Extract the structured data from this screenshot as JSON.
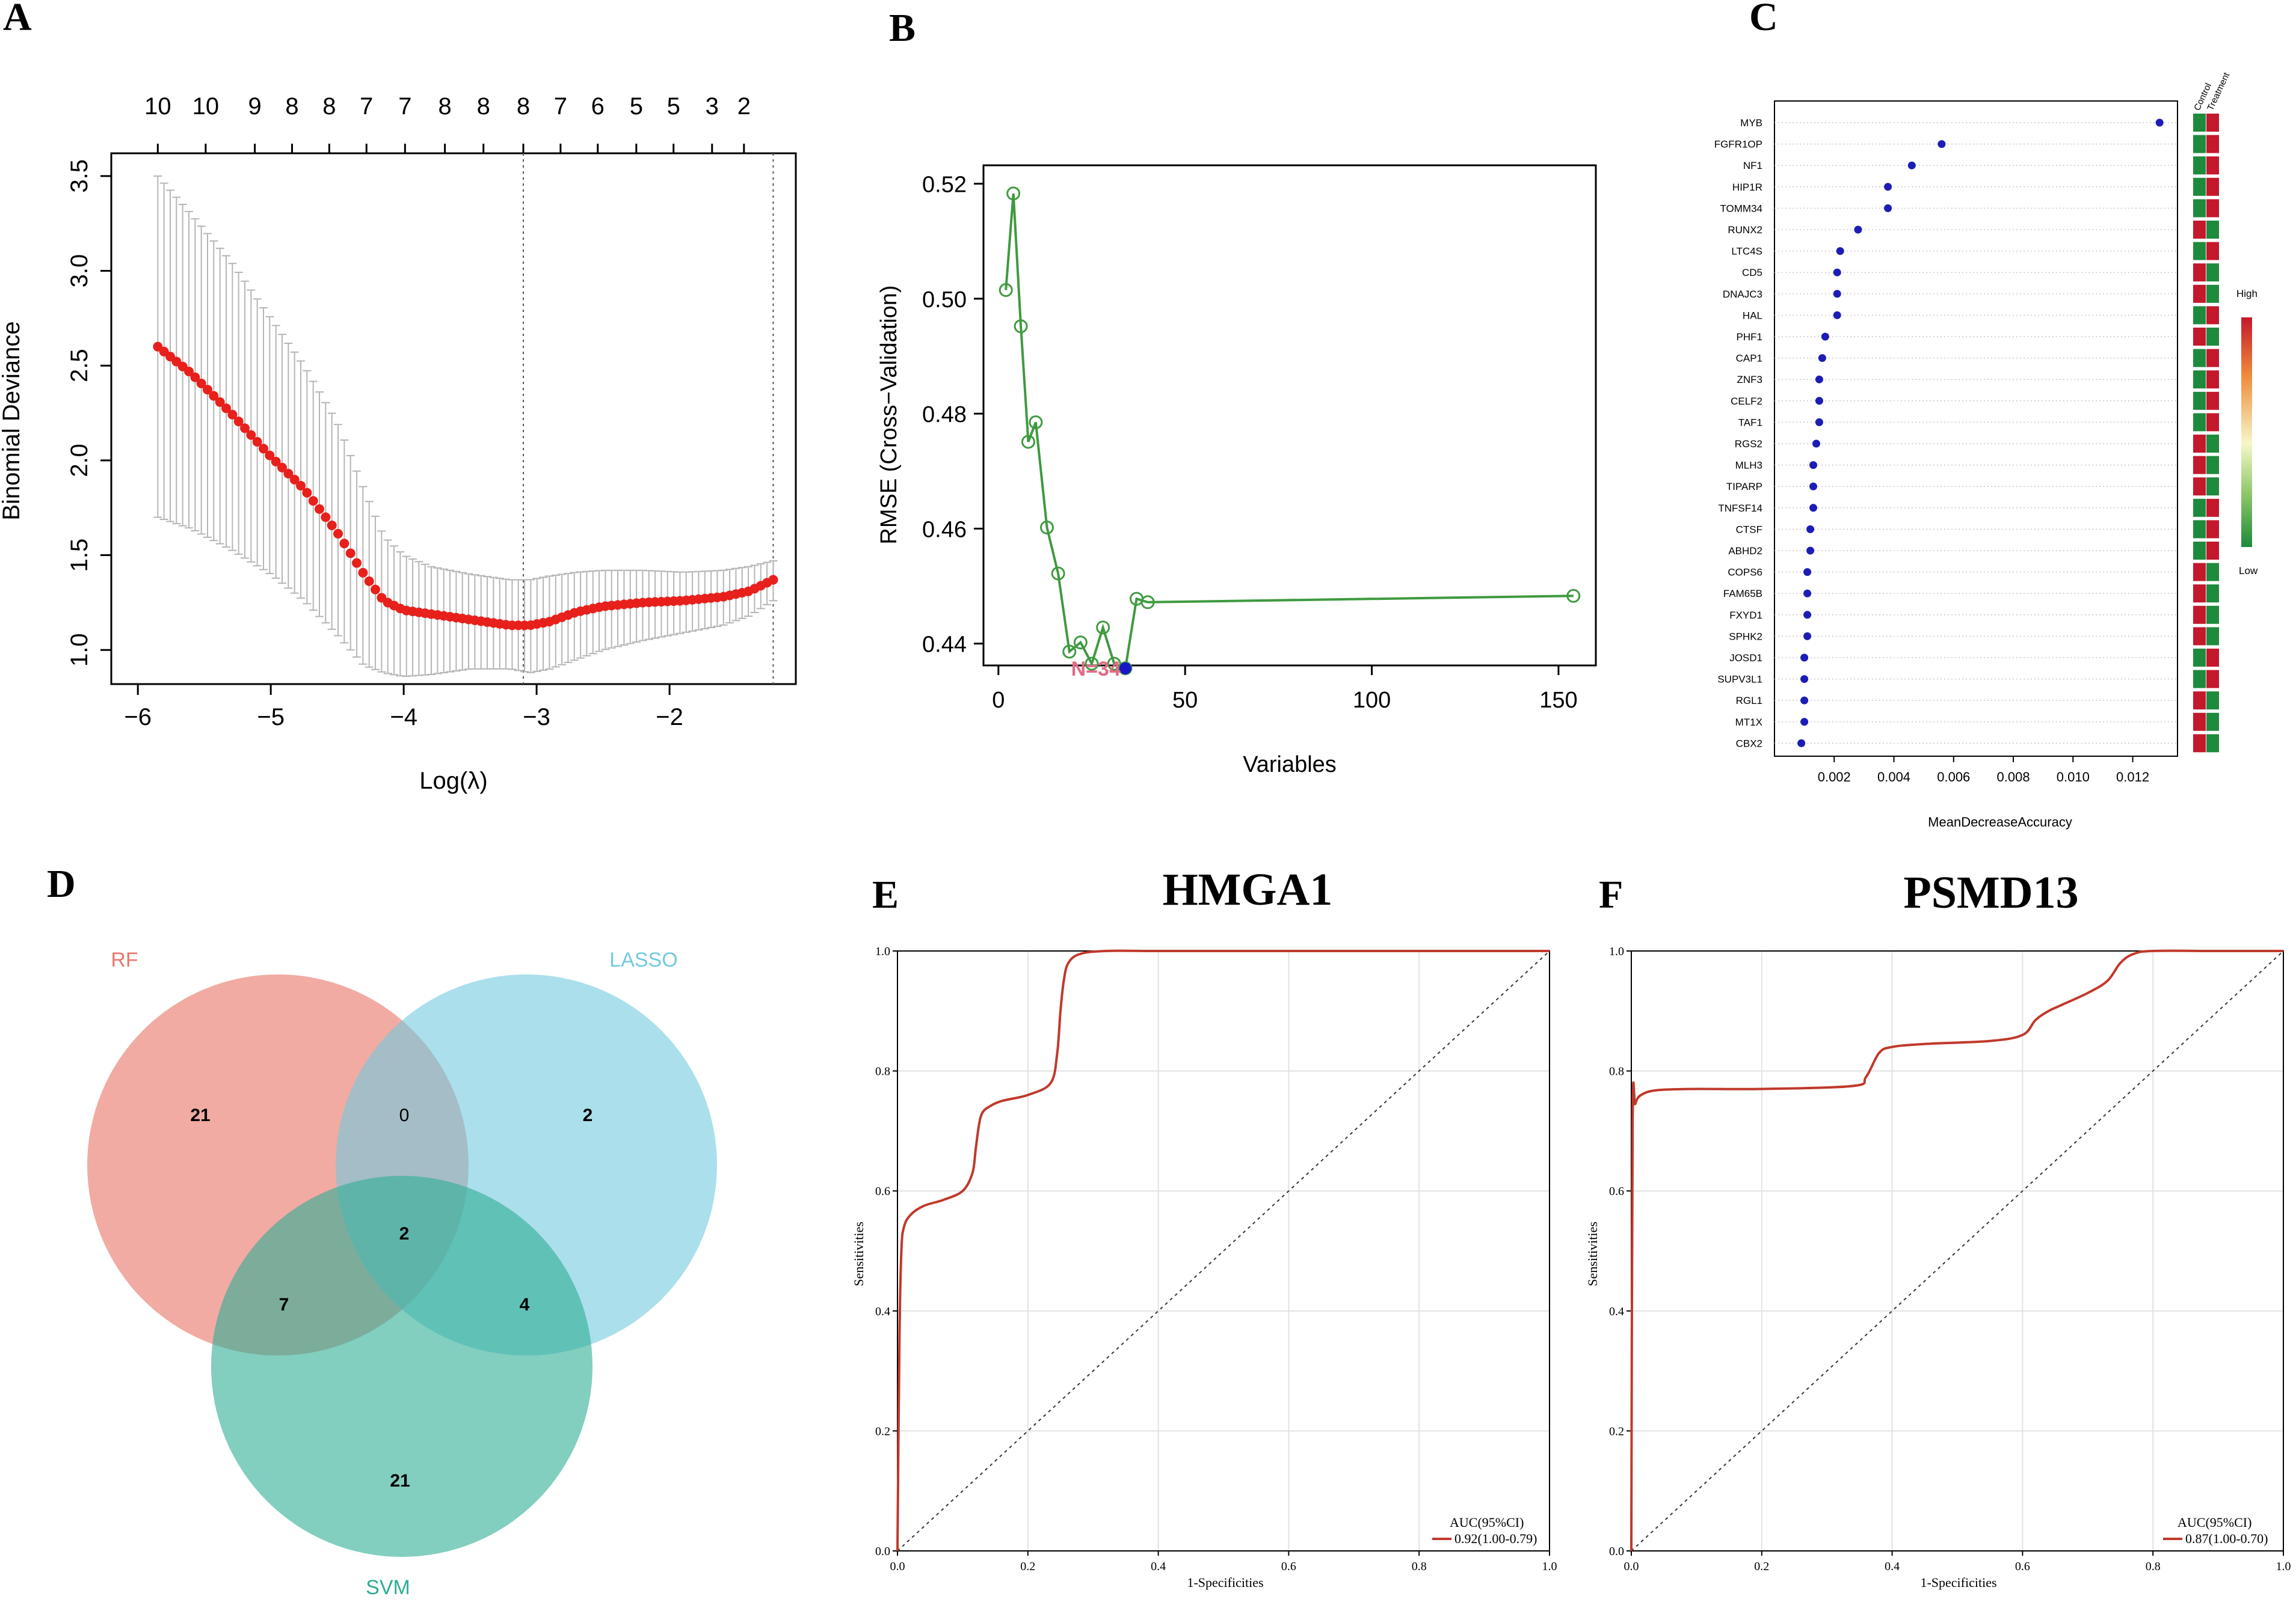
{
  "panel_labels": {
    "a": "A",
    "b": "B",
    "c": "C",
    "d": "D",
    "e": "E",
    "f": "F"
  },
  "colors": {
    "lasso_point": "#e8201c",
    "lasso_error": "#b5b5b5",
    "rfe_line": "#3f9a3f",
    "rfe_best": "#1717c8",
    "rfe_label": "#e26a86",
    "rf_dot": "#1d1db5",
    "heat_green": "#1e8a3c",
    "heat_red": "#c4182c",
    "venn_rf": "#e8786a",
    "venn_lasso": "#73c9df",
    "venn_svm": "#2ead95",
    "roc_line": "#c0392b"
  },
  "chart_data": [
    {
      "id": "A",
      "type": "line",
      "title": "",
      "xlabel": "Log(λ)",
      "ylabel": "Binomial Deviance",
      "xlim": [
        -6.2,
        -1.05
      ],
      "ylim": [
        0.82,
        3.62
      ],
      "xticks": [
        -6,
        -5,
        -4,
        -3,
        -2
      ],
      "xtick_labels": [
        "−6",
        "−5",
        "−4",
        "−3",
        "−2"
      ],
      "yticks": [
        1.0,
        1.5,
        2.0,
        2.5,
        3.0,
        3.5
      ],
      "ytick_labels": [
        "1.0",
        "1.5",
        "2.0",
        "2.5",
        "3.0",
        "3.5"
      ],
      "top_axis_x": [
        -5.85,
        -5.49,
        -5.12,
        -4.84,
        -4.56,
        -4.28,
        -3.99,
        -3.69,
        -3.4,
        -3.1,
        -2.82,
        -2.54,
        -2.25,
        -1.97,
        -1.68,
        -1.44
      ],
      "top_axis_labels": [
        "10",
        "10",
        "9",
        "8",
        "8",
        "7",
        "7",
        "8",
        "8",
        "8",
        "7",
        "6",
        "5",
        "5",
        "3",
        "2"
      ],
      "vlines": [
        -3.1,
        -1.22
      ],
      "series": [
        {
          "name": "cv_mean",
          "x": [
            -5.85,
            -5.6,
            -5.3,
            -5.0,
            -4.75,
            -4.5,
            -4.3,
            -4.15,
            -4.0,
            -3.8,
            -3.5,
            -3.2,
            -3.05,
            -2.9,
            -2.7,
            -2.5,
            -2.2,
            -1.9,
            -1.6,
            -1.4,
            -1.22
          ],
          "y": [
            2.6,
            2.46,
            2.25,
            2.02,
            1.85,
            1.62,
            1.4,
            1.26,
            1.21,
            1.19,
            1.16,
            1.13,
            1.13,
            1.15,
            1.2,
            1.23,
            1.25,
            1.26,
            1.28,
            1.31,
            1.37
          ]
        },
        {
          "name": "cv_upper",
          "x": [
            -5.85,
            -5.6,
            -5.3,
            -5.0,
            -4.75,
            -4.5,
            -4.3,
            -4.15,
            -4.0,
            -3.8,
            -3.5,
            -3.2,
            -3.05,
            -2.9,
            -2.7,
            -2.5,
            -2.2,
            -1.9,
            -1.6,
            -1.4,
            -1.22
          ],
          "y": [
            3.5,
            3.3,
            3.05,
            2.75,
            2.5,
            2.2,
            1.85,
            1.6,
            1.5,
            1.44,
            1.4,
            1.37,
            1.37,
            1.39,
            1.41,
            1.42,
            1.42,
            1.41,
            1.42,
            1.44,
            1.47
          ]
        },
        {
          "name": "cv_lower",
          "x": [
            -5.85,
            -5.6,
            -5.3,
            -5.0,
            -4.75,
            -4.5,
            -4.3,
            -4.15,
            -4.0,
            -3.8,
            -3.5,
            -3.2,
            -3.05,
            -2.9,
            -2.7,
            -2.5,
            -2.2,
            -1.9,
            -1.6,
            -1.4,
            -1.22
          ],
          "y": [
            1.7,
            1.64,
            1.53,
            1.4,
            1.26,
            1.08,
            0.92,
            0.88,
            0.86,
            0.87,
            0.9,
            0.9,
            0.88,
            0.9,
            0.95,
            1.0,
            1.05,
            1.09,
            1.13,
            1.18,
            1.26
          ]
        }
      ]
    },
    {
      "id": "B",
      "type": "line",
      "title": "",
      "xlabel": "Variables",
      "ylabel": "RMSE (Cross−Validation)",
      "xlim": [
        -4,
        160
      ],
      "ylim": [
        0.4362,
        0.5232
      ],
      "xticks": [
        0,
        50,
        100,
        150
      ],
      "xtick_labels": [
        "0",
        "50",
        "100",
        "150"
      ],
      "yticks": [
        0.44,
        0.46,
        0.48,
        0.5,
        0.52
      ],
      "ytick_labels": [
        "0.44",
        "0.46",
        "0.48",
        "0.50",
        "0.52"
      ],
      "series": [
        {
          "name": "rmse",
          "x": [
            2,
            4,
            6,
            8,
            10,
            13,
            16,
            19,
            22,
            25,
            28,
            31,
            34,
            37,
            40,
            154
          ],
          "y": [
            0.5015,
            0.5183,
            0.4952,
            0.4751,
            0.4785,
            0.4602,
            0.4522,
            0.4386,
            0.4402,
            0.4365,
            0.4428,
            0.4365,
            0.4357,
            0.4478,
            0.4472,
            0.4483
          ]
        }
      ],
      "best": {
        "x": 34,
        "y": 0.4357,
        "label": "N=34"
      }
    },
    {
      "id": "C",
      "type": "scatter",
      "title": "",
      "xlabel": "MeanDecreaseAccuracy",
      "xlim": [
        0.0,
        0.0135
      ],
      "xticks": [
        0.002,
        0.004,
        0.006,
        0.008,
        0.01,
        0.012
      ],
      "xtick_labels": [
        "0.002",
        "0.004",
        "0.006",
        "0.008",
        "0.010",
        "0.012"
      ],
      "categories": [
        "MYB",
        "FGFR1OP",
        "NF1",
        "HIP1R",
        "TOMM34",
        "RUNX2",
        "LTC4S",
        "CD5",
        "DNAJC3",
        "HAL",
        "PHF1",
        "CAP1",
        "ZNF3",
        "CELF2",
        "TAF1",
        "RGS2",
        "MLH3",
        "TIPARP",
        "TNFSF14",
        "CTSF",
        "ABHD2",
        "COPS6",
        "FAM65B",
        "FXYD1",
        "SPHK2",
        "JOSD1",
        "SUPV3L1",
        "RGL1",
        "MT1X",
        "CBX2"
      ],
      "values": [
        0.0129,
        0.0056,
        0.0046,
        0.0038,
        0.0038,
        0.0028,
        0.0022,
        0.0021,
        0.0021,
        0.0021,
        0.0017,
        0.0016,
        0.0015,
        0.0015,
        0.0015,
        0.0014,
        0.0013,
        0.0013,
        0.0013,
        0.0012,
        0.0012,
        0.0011,
        0.0011,
        0.0011,
        0.0011,
        0.001,
        0.001,
        0.001,
        0.001,
        0.0009
      ],
      "heatmap_columns": [
        "Control",
        "Treatment"
      ],
      "heatmap": [
        [
          "G",
          "R"
        ],
        [
          "G",
          "R"
        ],
        [
          "G",
          "R"
        ],
        [
          "G",
          "R"
        ],
        [
          "G",
          "R"
        ],
        [
          "R",
          "G"
        ],
        [
          "G",
          "R"
        ],
        [
          "R",
          "G"
        ],
        [
          "R",
          "G"
        ],
        [
          "G",
          "R"
        ],
        [
          "R",
          "G"
        ],
        [
          "G",
          "R"
        ],
        [
          "G",
          "R"
        ],
        [
          "G",
          "R"
        ],
        [
          "G",
          "R"
        ],
        [
          "R",
          "G"
        ],
        [
          "R",
          "G"
        ],
        [
          "R",
          "G"
        ],
        [
          "G",
          "R"
        ],
        [
          "G",
          "R"
        ],
        [
          "G",
          "R"
        ],
        [
          "R",
          "G"
        ],
        [
          "R",
          "G"
        ],
        [
          "R",
          "G"
        ],
        [
          "R",
          "G"
        ],
        [
          "G",
          "R"
        ],
        [
          "G",
          "R"
        ],
        [
          "R",
          "G"
        ],
        [
          "R",
          "G"
        ],
        [
          "R",
          "G"
        ]
      ],
      "colorbar_labels": [
        "High",
        "Low"
      ]
    },
    {
      "id": "D",
      "type": "venn",
      "sets": [
        "RF",
        "LASSO",
        "SVM"
      ],
      "regions": {
        "rf_only": "21",
        "rf_lasso": "0",
        "lasso_only": "2",
        "all": "2",
        "rf_svm": "7",
        "lasso_svm": "4",
        "svm_only": "21"
      }
    },
    {
      "id": "E",
      "type": "line",
      "title": "HMGA1",
      "xlabel": "1-Specificities",
      "ylabel": "Sensitivities",
      "xlim": [
        0,
        1
      ],
      "ylim": [
        0,
        1
      ],
      "xticks": [
        0,
        0.2,
        0.4,
        0.6,
        0.8,
        1.0
      ],
      "xtick_labels": [
        "0.0",
        "0.2",
        "0.4",
        "0.6",
        "0.8",
        "1.0"
      ],
      "yticks": [
        0,
        0.2,
        0.4,
        0.6,
        0.8,
        1.0
      ],
      "ytick_labels": [
        "0.0",
        "0.2",
        "0.4",
        "0.6",
        "0.8",
        "1.0"
      ],
      "series": [
        {
          "name": "roc",
          "x": [
            0,
            0.003,
            0.006,
            0.01,
            0.02,
            0.04,
            0.07,
            0.1,
            0.115,
            0.12,
            0.125,
            0.13,
            0.14,
            0.16,
            0.2,
            0.235,
            0.245,
            0.25,
            0.255,
            0.262,
            0.28,
            0.32,
            0.4,
            0.6,
            0.8,
            1.0
          ],
          "y": [
            0,
            0.35,
            0.5,
            0.54,
            0.56,
            0.575,
            0.585,
            0.6,
            0.63,
            0.67,
            0.71,
            0.73,
            0.74,
            0.75,
            0.76,
            0.78,
            0.83,
            0.9,
            0.95,
            0.98,
            0.995,
            1.0,
            1.0,
            1.0,
            1.0,
            1.0
          ]
        }
      ],
      "legend_title": "AUC(95%CI)",
      "legend_entry": "0.92(1.00-0.79)"
    },
    {
      "id": "F",
      "type": "line",
      "title": "PSMD13",
      "xlabel": "1-Specificities",
      "ylabel": "Sensitivities",
      "xlim": [
        0,
        1
      ],
      "ylim": [
        0,
        1
      ],
      "xticks": [
        0,
        0.2,
        0.4,
        0.6,
        0.8,
        1.0
      ],
      "xtick_labels": [
        "0.0",
        "0.2",
        "0.4",
        "0.6",
        "0.8",
        "1.0"
      ],
      "yticks": [
        0,
        0.2,
        0.4,
        0.6,
        0.8,
        1.0
      ],
      "ytick_labels": [
        "0.0",
        "0.2",
        "0.4",
        "0.6",
        "0.8",
        "1.0"
      ],
      "series": [
        {
          "name": "roc",
          "x": [
            0,
            0.002,
            0.006,
            0.015,
            0.04,
            0.1,
            0.2,
            0.34,
            0.36,
            0.38,
            0.4,
            0.45,
            0.55,
            0.6,
            0.62,
            0.64,
            0.66,
            0.7,
            0.73,
            0.75,
            0.77,
            0.8,
            0.9,
            1.0
          ],
          "y": [
            0,
            0.72,
            0.745,
            0.76,
            0.768,
            0.77,
            0.77,
            0.775,
            0.79,
            0.83,
            0.84,
            0.845,
            0.85,
            0.86,
            0.885,
            0.9,
            0.91,
            0.93,
            0.95,
            0.98,
            0.995,
            1.0,
            1.0,
            1.0
          ]
        }
      ],
      "legend_title": "AUC(95%CI)",
      "legend_entry": "0.87(1.00-0.70)"
    }
  ]
}
